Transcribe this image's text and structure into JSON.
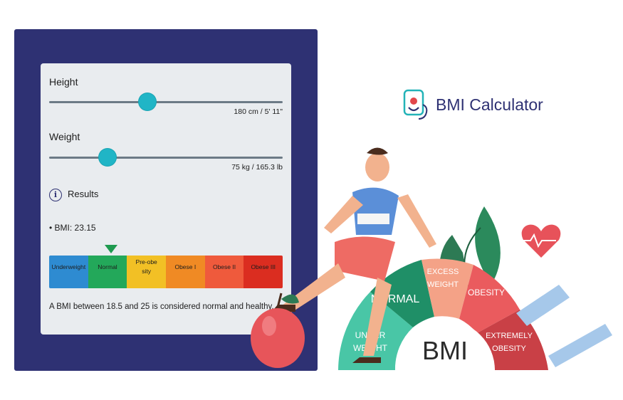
{
  "height": {
    "label": "Height",
    "value_text": "180 cm / 5' 11\"",
    "fraction": 0.42
  },
  "weight": {
    "label": "Weight",
    "value_text": "75 kg / 165.3 lb",
    "fraction": 0.25
  },
  "results": {
    "title": "Results",
    "icon": "info-icon",
    "bmi_text": "• BMI: 23.15"
  },
  "scale": [
    {
      "label": "Underweight",
      "color": "#2e8bd1"
    },
    {
      "label": "Normal",
      "color": "#23a85a"
    },
    {
      "label": "Pre-obesity",
      "color": "#f2c025"
    },
    {
      "label": "Obese I",
      "color": "#f08a24"
    },
    {
      "label": "Obese II",
      "color": "#ef5a3c"
    },
    {
      "label": "Obese III",
      "color": "#db2d20"
    }
  ],
  "summary": "A BMI between 18.5 and 25 is considered normal and healthy.",
  "brand": {
    "name": "BMI Calculator",
    "icon": "stethoscope-logo-icon"
  },
  "illustration": {
    "center": "BMI",
    "gauge": [
      {
        "label": "UNDER WEIGHT",
        "color": "#49c6a6"
      },
      {
        "label": "NORMAL",
        "color": "#1f8f67"
      },
      {
        "label": "EXCESS WEIGHT",
        "color": "#f4a287"
      },
      {
        "label": "OBESITY",
        "color": "#ea5b5e"
      },
      {
        "label": "EXTREMELY OBESITY",
        "color": "#c94046"
      }
    ]
  }
}
